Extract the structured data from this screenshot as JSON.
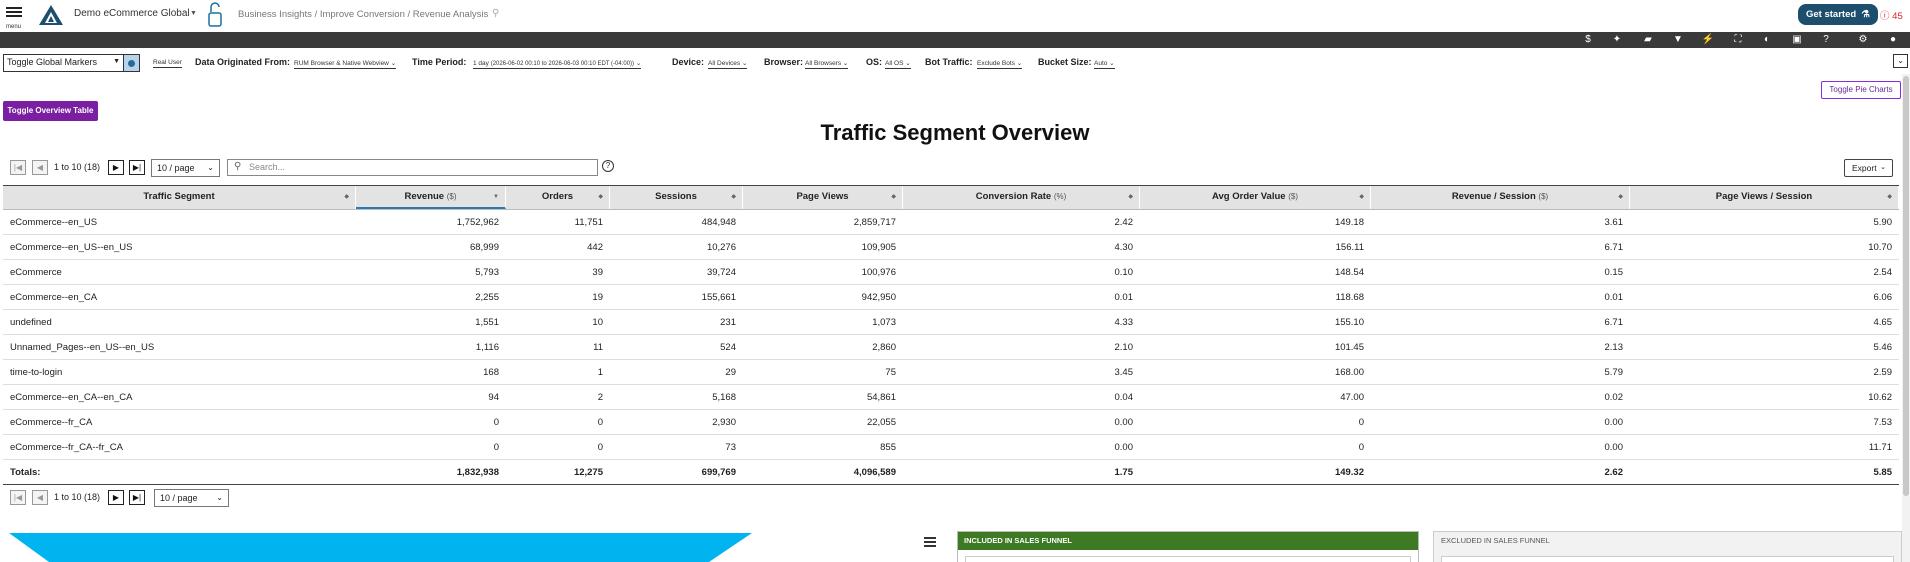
{
  "header": {
    "menu_label": "menu",
    "app_name": "Demo eCommerce Global",
    "breadcrumb": "Business Insights / Improve Conversion / Revenue Analysis",
    "get_started_label": "Get started",
    "alert_count": "45"
  },
  "toolbar_icons": [
    "dollar-icon",
    "sparkle-icon",
    "comment-icon",
    "filter-icon",
    "lightning-icon",
    "fullscreen-icon",
    "contrast-icon",
    "info-icon",
    "help-icon",
    "settings-icon",
    "user-icon"
  ],
  "filters": {
    "global_markers": "Toggle Global Markers",
    "real_user": "Real User",
    "data_origin_label": "Data Originated From:",
    "data_origin_value": "RUM Browser & Native Webview",
    "time_period_label": "Time Period:",
    "time_period_value": "1 day",
    "time_period_range": "(2026-06-02 00:10 to 2026-06-03 00:10 EDT (-04:00))",
    "device_label": "Device:",
    "device_value": "All Devices",
    "browser_label": "Browser:",
    "browser_value": "All Browsers",
    "os_label": "OS:",
    "os_value": "All OS",
    "bot_label": "Bot Traffic:",
    "bot_value": "Exclude Bots",
    "bucket_label": "Bucket Size:",
    "bucket_value": "Auto"
  },
  "actions": {
    "toggle_pie": "Toggle Pie Charts",
    "toggle_overview": "Toggle Overview Table",
    "export": "Export"
  },
  "title": "Traffic Segment Overview",
  "pager": {
    "range": "1 to 10 (18)",
    "page_size": "10 / page"
  },
  "search": {
    "placeholder": "Search..."
  },
  "table": {
    "columns": [
      {
        "label": "Traffic Segment",
        "unit": ""
      },
      {
        "label": "Revenue",
        "unit": "($)"
      },
      {
        "label": "Orders",
        "unit": ""
      },
      {
        "label": "Sessions",
        "unit": ""
      },
      {
        "label": "Page Views",
        "unit": ""
      },
      {
        "label": "Conversion Rate",
        "unit": "(%)"
      },
      {
        "label": "Avg Order Value",
        "unit": "($)"
      },
      {
        "label": "Revenue / Session",
        "unit": "($)"
      },
      {
        "label": "Page Views / Session",
        "unit": ""
      }
    ],
    "rows": [
      [
        "eCommerce--en_US",
        "1,752,962",
        "11,751",
        "484,948",
        "2,859,717",
        "2.42",
        "149.18",
        "3.61",
        "5.90"
      ],
      [
        "eCommerce--en_US--en_US",
        "68,999",
        "442",
        "10,276",
        "109,905",
        "4.30",
        "156.11",
        "6.71",
        "10.70"
      ],
      [
        "eCommerce",
        "5,793",
        "39",
        "39,724",
        "100,976",
        "0.10",
        "148.54",
        "0.15",
        "2.54"
      ],
      [
        "eCommerce--en_CA",
        "2,255",
        "19",
        "155,661",
        "942,950",
        "0.01",
        "118.68",
        "0.01",
        "6.06"
      ],
      [
        "undefined",
        "1,551",
        "10",
        "231",
        "1,073",
        "4.33",
        "155.10",
        "6.71",
        "4.65"
      ],
      [
        "Unnamed_Pages--en_US--en_US",
        "1,116",
        "11",
        "524",
        "2,860",
        "2.10",
        "101.45",
        "2.13",
        "5.46"
      ],
      [
        "time-to-login",
        "168",
        "1",
        "29",
        "75",
        "3.45",
        "168.00",
        "5.79",
        "2.59"
      ],
      [
        "eCommerce--en_CA--en_CA",
        "94",
        "2",
        "5,168",
        "54,861",
        "0.04",
        "47.00",
        "0.02",
        "10.62"
      ],
      [
        "eCommerce--fr_CA",
        "0",
        "0",
        "2,930",
        "22,055",
        "0.00",
        "0",
        "0.00",
        "7.53"
      ],
      [
        "eCommerce--fr_CA--fr_CA",
        "0",
        "0",
        "73",
        "855",
        "0.00",
        "0",
        "0.00",
        "11.71"
      ]
    ],
    "totals": [
      "Totals:",
      "1,832,938",
      "12,275",
      "699,769",
      "4,096,589",
      "1.75",
      "149.32",
      "2.62",
      "5.85"
    ]
  },
  "panels": {
    "included": "INCLUDED IN SALES FUNNEL",
    "excluded": "EXCLUDED IN SALES FUNNEL"
  },
  "colors": {
    "accent_purple": "#7a1fa2",
    "get_started_bg": "#1d4e6e",
    "included_green": "#3d7a23",
    "funnel_cyan": "#00b4ef"
  }
}
